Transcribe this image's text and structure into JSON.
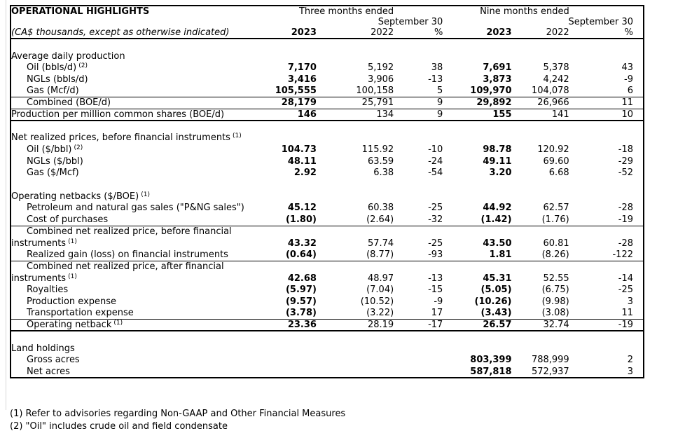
{
  "title": "OPERATIONAL HIGHLIGHTS",
  "subtitle": "(CA$ thousands, except as otherwise indicated)",
  "header": {
    "period_groups": [
      {
        "line1": "Three months ended",
        "line2": "September 30"
      },
      {
        "line1": "Nine months ended",
        "line2": "September 30"
      }
    ],
    "columns": [
      "2023",
      "2022",
      "%",
      "2023",
      "2022",
      "%"
    ]
  },
  "table": {
    "rows": [
      {
        "type": "blank"
      },
      {
        "type": "section",
        "label": "Average daily production"
      },
      {
        "type": "item",
        "label": "Oil (bbls/d)",
        "sup": "(2)",
        "values": [
          "7,170",
          "5,192",
          "38",
          "7,691",
          "5,378",
          "43"
        ]
      },
      {
        "type": "item",
        "label": "NGLs (bbls/d)",
        "values": [
          "3,416",
          "3,906",
          "-13",
          "3,873",
          "4,242",
          "-9"
        ]
      },
      {
        "type": "item",
        "label": "Gas (Mcf/d)",
        "values": [
          "105,555",
          "100,158",
          "5",
          "109,970",
          "104,078",
          "6"
        ],
        "line": "thin"
      },
      {
        "type": "item",
        "label": "Combined (BOE/d)",
        "values": [
          "28,179",
          "25,791",
          "9",
          "29,892",
          "26,966",
          "11"
        ],
        "line": "thin"
      },
      {
        "type": "flush",
        "label": "Production per million common shares (BOE/d)",
        "values": [
          "146",
          "134",
          "9",
          "155",
          "141",
          "10"
        ],
        "line": "thick"
      },
      {
        "type": "blank"
      },
      {
        "type": "section",
        "label": "Net realized prices, before financial instruments",
        "sup": "(1)"
      },
      {
        "type": "item",
        "label": "Oil ($/bbl)",
        "sup": "(2)",
        "values": [
          "104.73",
          "115.92",
          "-10",
          "98.78",
          "120.92",
          "-18"
        ]
      },
      {
        "type": "item",
        "label": "NGLs ($/bbl)",
        "values": [
          "48.11",
          "63.59",
          "-24",
          "49.11",
          "69.60",
          "-29"
        ]
      },
      {
        "type": "item",
        "label": "Gas ($/Mcf)",
        "values": [
          "2.92",
          "6.38",
          "-54",
          "3.20",
          "6.68",
          "-52"
        ]
      },
      {
        "type": "blank"
      },
      {
        "type": "section",
        "label": "Operating netbacks ($/BOE)",
        "sup": "(1)"
      },
      {
        "type": "item",
        "label": "Petroleum and natural gas sales (\"P&NG sales\")",
        "values": [
          "45.12",
          "60.38",
          "-25",
          "44.92",
          "62.57",
          "-28"
        ]
      },
      {
        "type": "item",
        "label": "Cost of purchases",
        "values": [
          "(1.80)",
          "(2.64)",
          "-32",
          "(1.42)",
          "(1.76)",
          "-19"
        ],
        "line": "thin"
      },
      {
        "type": "item",
        "label": "Combined net realized price, before financial"
      },
      {
        "type": "flush",
        "label": "instruments",
        "sup": "(1)",
        "values": [
          "43.32",
          "57.74",
          "-25",
          "43.50",
          "60.81",
          "-28"
        ]
      },
      {
        "type": "item",
        "label": "Realized gain (loss) on financial instruments",
        "values": [
          "(0.64)",
          "(8.77)",
          "-93",
          "1.81",
          "(8.26)",
          "-122"
        ],
        "line": "thin"
      },
      {
        "type": "item",
        "label": "Combined net realized price, after financial"
      },
      {
        "type": "flush",
        "label": "instruments",
        "sup": "(1)",
        "values": [
          "42.68",
          "48.97",
          "-13",
          "45.31",
          "52.55",
          "-14"
        ]
      },
      {
        "type": "item",
        "label": "Royalties",
        "values": [
          "(5.97)",
          "(7.04)",
          "-15",
          "(5.05)",
          "(6.75)",
          "-25"
        ]
      },
      {
        "type": "item",
        "label": "Production expense",
        "values": [
          "(9.57)",
          "(10.52)",
          "-9",
          "(10.26)",
          "(9.98)",
          "3"
        ]
      },
      {
        "type": "item",
        "label": "Transportation expense",
        "values": [
          "(3.78)",
          "(3.22)",
          "17",
          "(3.43)",
          "(3.08)",
          "11"
        ],
        "line": "thin"
      },
      {
        "type": "item",
        "label": "Operating netback",
        "sup": "(1)",
        "values": [
          "23.36",
          "28.19",
          "-17",
          "26.57",
          "32.74",
          "-19"
        ],
        "line": "thick"
      },
      {
        "type": "blank"
      },
      {
        "type": "section",
        "label": "Land holdings"
      },
      {
        "type": "item",
        "label": "Gross acres",
        "values": [
          "",
          "",
          "",
          "803,399",
          "788,999",
          "2"
        ]
      },
      {
        "type": "item",
        "label": "Net acres",
        "values": [
          "",
          "",
          "",
          "587,818",
          "572,937",
          "3"
        ]
      }
    ]
  },
  "footnotes": [
    "(1) Refer to advisories regarding Non-GAAP and Other Financial Measures",
    "(2) \"Oil\" includes crude oil and field condensate"
  ],
  "colors": {
    "border": "#000000",
    "text": "#000000",
    "pane_line": "#d6d6d6",
    "background": "#ffffff"
  }
}
